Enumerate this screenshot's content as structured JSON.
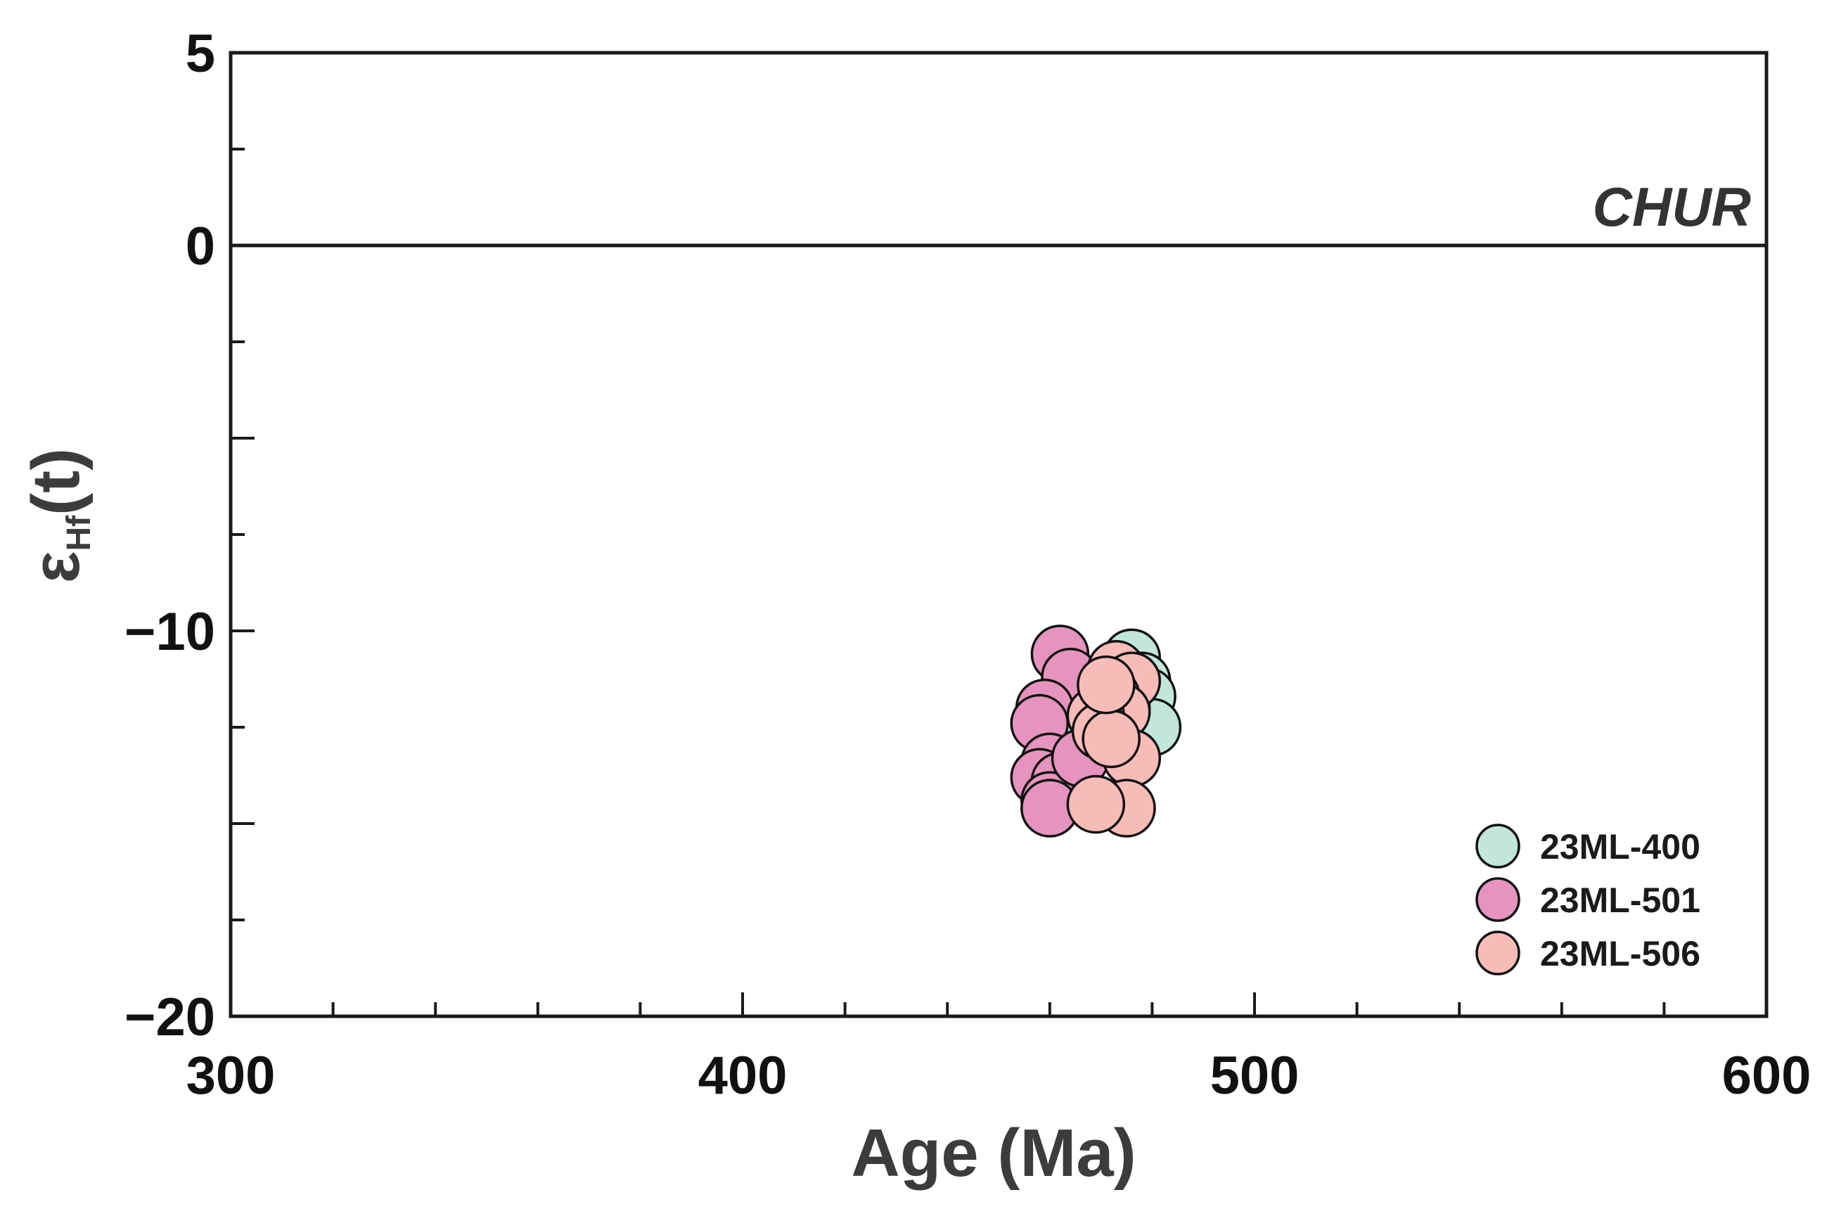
{
  "chart_data": {
    "type": "scatter",
    "title": "",
    "xlabel": "Age (Ma)",
    "ylabel": {
      "main": "ε",
      "sub": "Hf",
      "suffix": "(t)"
    },
    "xlim": [
      300,
      600
    ],
    "ylim": [
      -20,
      5
    ],
    "x_ticks": [
      "300",
      "400",
      "500",
      "600"
    ],
    "y_ticks": [
      "5",
      "0",
      "−10",
      "−20"
    ],
    "grid": false,
    "legend_position": "bottom-right",
    "reference_line": {
      "y": 0,
      "label": "CHUR"
    },
    "series": [
      {
        "name": "23ML-400",
        "color": "#c3e6dc",
        "points": [
          {
            "x": 476,
            "y": -10.7
          },
          {
            "x": 478,
            "y": -11.3
          },
          {
            "x": 479,
            "y": -11.7
          },
          {
            "x": 480,
            "y": -12.5
          },
          {
            "x": 463,
            "y": -12.8
          },
          {
            "x": 467,
            "y": -13.1
          },
          {
            "x": 471,
            "y": -12.3
          },
          {
            "x": 474,
            "y": -12.0
          },
          {
            "x": 470,
            "y": -11.6
          },
          {
            "x": 468,
            "y": -12.6
          }
        ]
      },
      {
        "name": "23ML-501",
        "color": "#e694bf",
        "points": [
          {
            "x": 462,
            "y": -10.6
          },
          {
            "x": 464,
            "y": -11.2
          },
          {
            "x": 459,
            "y": -12.0
          },
          {
            "x": 458,
            "y": -12.4
          },
          {
            "x": 460,
            "y": -13.4
          },
          {
            "x": 458,
            "y": -13.8
          },
          {
            "x": 462,
            "y": -13.9
          },
          {
            "x": 460,
            "y": -14.4
          },
          {
            "x": 460,
            "y": -14.6
          },
          {
            "x": 466,
            "y": -13.3
          }
        ]
      },
      {
        "name": "23ML-506",
        "color": "#f7bcb8",
        "points": [
          {
            "x": 473,
            "y": -11.0
          },
          {
            "x": 476,
            "y": -11.3
          },
          {
            "x": 472,
            "y": -11.7
          },
          {
            "x": 474,
            "y": -12.1
          },
          {
            "x": 469,
            "y": -12.2
          },
          {
            "x": 470,
            "y": -12.6
          },
          {
            "x": 476,
            "y": -13.3
          },
          {
            "x": 475,
            "y": -14.6
          },
          {
            "x": 469,
            "y": -14.5
          },
          {
            "x": 472,
            "y": -12.8
          },
          {
            "x": 471,
            "y": -11.4
          }
        ]
      }
    ]
  }
}
